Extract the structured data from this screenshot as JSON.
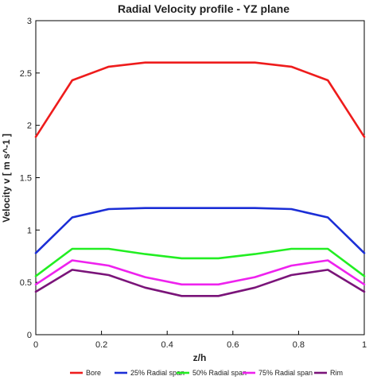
{
  "chart_data": {
    "type": "line",
    "title": "Radial Velocity profile - YZ plane",
    "xlabel": "z/h",
    "ylabel": "Velocity v [ m s^-1 ]",
    "xlim": [
      0,
      1
    ],
    "ylim": [
      0,
      3
    ],
    "x_ticks": [
      "0",
      "0.2",
      "0.4",
      "0.6",
      "0.8",
      "1"
    ],
    "y_ticks": [
      "0",
      "0.5",
      "1",
      "1.5",
      "2",
      "2.5",
      "3"
    ],
    "grid": false,
    "legend_position": "bottom",
    "x": [
      0,
      0.111,
      0.222,
      0.333,
      0.444,
      0.556,
      0.667,
      0.778,
      0.889,
      1
    ],
    "series": [
      {
        "name": "Bore",
        "color": "#ee1c1c",
        "values": [
          1.89,
          2.43,
          2.56,
          2.6,
          2.6,
          2.6,
          2.6,
          2.56,
          2.43,
          1.89
        ]
      },
      {
        "name": "25% Radial span",
        "color": "#1b2ed6",
        "values": [
          0.78,
          1.12,
          1.2,
          1.21,
          1.21,
          1.21,
          1.21,
          1.2,
          1.12,
          0.78
        ]
      },
      {
        "name": "50% Radial span",
        "color": "#22ee22",
        "values": [
          0.56,
          0.82,
          0.82,
          0.77,
          0.73,
          0.73,
          0.77,
          0.82,
          0.82,
          0.56
        ]
      },
      {
        "name": "75% Radial span",
        "color": "#ee22ee",
        "values": [
          0.48,
          0.71,
          0.66,
          0.55,
          0.48,
          0.48,
          0.55,
          0.66,
          0.71,
          0.48
        ]
      },
      {
        "name": "Rim",
        "color": "#7a1479",
        "values": [
          0.41,
          0.62,
          0.57,
          0.45,
          0.37,
          0.37,
          0.45,
          0.57,
          0.62,
          0.41
        ]
      }
    ]
  }
}
